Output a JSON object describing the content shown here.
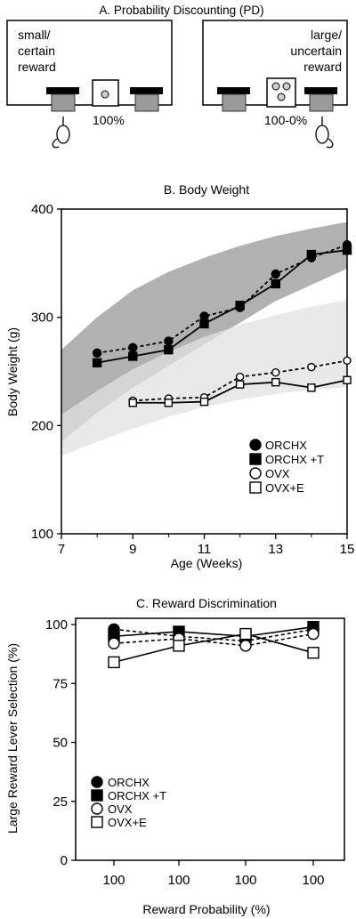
{
  "panelA": {
    "title": "A. Probability Discounting (PD)",
    "left_box": {
      "label_lines": [
        "small/",
        "certain",
        "reward"
      ],
      "probability": "100%"
    },
    "right_box": {
      "label_lines": [
        "large/",
        "uncertain",
        "reward"
      ],
      "probability": "100-0%"
    }
  },
  "chart_data": [
    {
      "type": "line",
      "title": "B. Body Weight",
      "xlabel": "Age (Weeks)",
      "ylabel": "Body Weight (g)",
      "xlim": [
        7,
        15
      ],
      "ylim": [
        100,
        400
      ],
      "xticks": [
        "7",
        "9",
        "11",
        "13",
        "15"
      ],
      "yticks": [
        "100",
        "200",
        "300",
        "400"
      ],
      "grid": false,
      "legend_position": "lower-right",
      "x": [
        8,
        9,
        10,
        11,
        12,
        13,
        14,
        15
      ],
      "series": [
        {
          "name": "ORCHX",
          "marker": "filled-circle",
          "line": "dashed",
          "x": [
            8,
            9,
            10,
            11,
            12,
            13,
            14,
            15
          ],
          "values": [
            267,
            272,
            278,
            301,
            309,
            340,
            355,
            367
          ]
        },
        {
          "name": "ORCHX +T",
          "marker": "filled-square",
          "line": "solid",
          "x": [
            8,
            9,
            10,
            11,
            12,
            13,
            14,
            15
          ],
          "values": [
            258,
            264,
            270,
            294,
            311,
            331,
            358,
            362
          ]
        },
        {
          "name": "OVX",
          "marker": "open-circle",
          "line": "dashed",
          "x": [
            9,
            10,
            11,
            12,
            13,
            14,
            15
          ],
          "values": [
            223,
            225,
            226,
            245,
            249,
            254,
            260
          ]
        },
        {
          "name": "OVX+E",
          "marker": "open-square",
          "line": "solid",
          "x": [
            9,
            10,
            11,
            12,
            13,
            14,
            15
          ],
          "values": [
            221,
            221,
            222,
            238,
            240,
            235,
            242
          ]
        }
      ],
      "bands": [
        {
          "color": "#a8a8a8",
          "x": [
            7,
            8,
            9,
            10,
            11,
            12,
            13,
            14,
            15
          ],
          "upper": [
            270,
            300,
            325,
            342,
            355,
            366,
            375,
            382,
            388
          ],
          "lower": [
            185,
            212,
            235,
            255,
            275,
            295,
            315,
            330,
            345
          ]
        },
        {
          "color": "#e2e2e2",
          "x": [
            7,
            8,
            9,
            10,
            11,
            12,
            13,
            14,
            15
          ],
          "upper": [
            210,
            232,
            252,
            268,
            282,
            293,
            302,
            310,
            316
          ],
          "lower": [
            172,
            185,
            197,
            208,
            217,
            224,
            229,
            233,
            235
          ]
        }
      ]
    },
    {
      "type": "line",
      "title": "C. Reward Discrimination",
      "xlabel": "Reward Probability (%)",
      "ylabel": "Large Reward Lever Selection (%)",
      "categories": [
        "100",
        "100",
        "100",
        "100"
      ],
      "ylim": [
        0,
        100
      ],
      "yticks": [
        "0",
        "25",
        "50",
        "75",
        "100"
      ],
      "grid": false,
      "legend_position": "lower-left",
      "series": [
        {
          "name": "ORCHX",
          "marker": "filled-circle",
          "line": "dashed",
          "values": [
            98,
            95,
            93,
            98
          ]
        },
        {
          "name": "ORCHX +T",
          "marker": "filled-square",
          "line": "solid",
          "values": [
            95,
            97,
            95,
            99
          ]
        },
        {
          "name": "OVX",
          "marker": "open-circle",
          "line": "dashed",
          "values": [
            92,
            94,
            91,
            96
          ]
        },
        {
          "name": "OVX+E",
          "marker": "open-square",
          "line": "solid",
          "values": [
            84,
            91,
            96,
            88
          ]
        }
      ]
    }
  ]
}
